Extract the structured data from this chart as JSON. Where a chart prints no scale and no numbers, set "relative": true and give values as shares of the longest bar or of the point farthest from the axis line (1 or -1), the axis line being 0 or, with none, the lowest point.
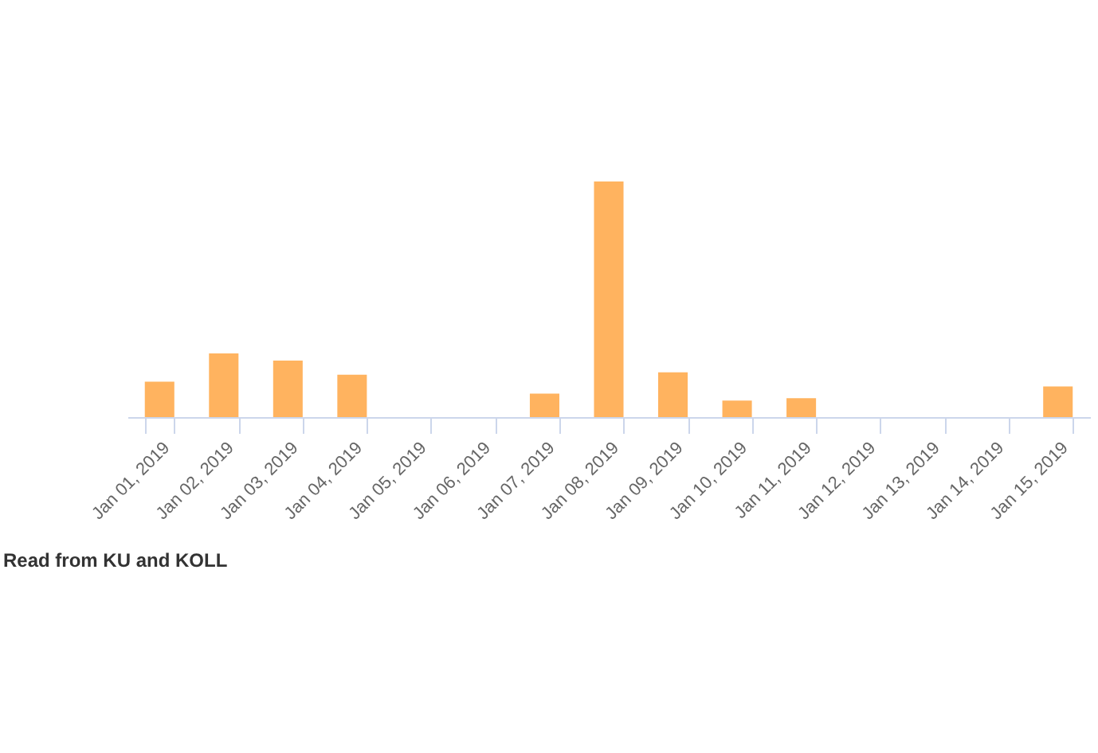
{
  "chart_data": {
    "type": "bar",
    "categories": [
      "Jan 01, 2019",
      "Jan 02, 2019",
      "Jan 03, 2019",
      "Jan 04, 2019",
      "Jan 05, 2019",
      "Jan 06, 2019",
      "Jan 07, 2019",
      "Jan 08, 2019",
      "Jan 09, 2019",
      "Jan 10, 2019",
      "Jan 11, 2019",
      "Jan 12, 2019",
      "Jan 13, 2019",
      "Jan 14, 2019",
      "Jan 15, 2019"
    ],
    "series": [
      {
        "color": "#ffb35f",
        "values": [
          0.15,
          0.27,
          0.24,
          0.18,
          0,
          0,
          0.1,
          1,
          0.19,
          0.07,
          0.08,
          0,
          0,
          0,
          0.13
        ]
      }
    ],
    "relative": true,
    "annotations": [
      "Read from KU and KOLL"
    ]
  }
}
